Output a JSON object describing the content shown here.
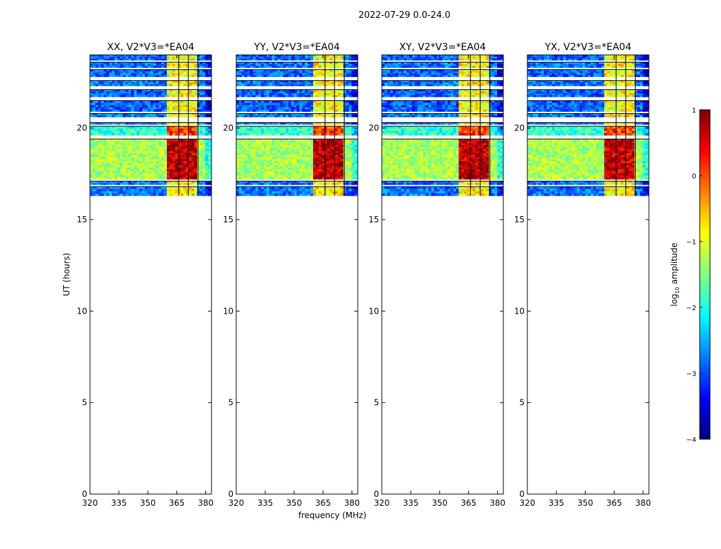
{
  "figure_title": "2022-07-29 0.0-24.0",
  "chart_data": {
    "type": "heatmap",
    "title": "2022-07-29 0.0-24.0",
    "xlabel": "frequency (MHz)",
    "ylabel": "UT (hours)",
    "xlim": [
      320,
      383
    ],
    "ylim": [
      0,
      24
    ],
    "xticks": [
      320,
      335,
      350,
      365,
      380
    ],
    "yticks": [
      0,
      5,
      10,
      15,
      20
    ],
    "colorbar": {
      "label_main": "log",
      "label_sub": "10",
      "label_rest": " amplitude",
      "colormap": "jet",
      "range": [
        -4,
        1
      ],
      "ticks": [
        1,
        0,
        -1,
        -2,
        -3,
        -4
      ],
      "tick_labels": [
        "1",
        "0",
        "−1",
        "−2",
        "−3",
        "−4"
      ]
    },
    "panels": [
      {
        "title": "XX, V2*V3=*EA04",
        "bright_band_mhz": [
          360,
          375
        ]
      },
      {
        "title": "YY, V2*V3=*EA04",
        "bright_band_mhz": [
          360,
          375
        ]
      },
      {
        "title": "XY, V2*V3=*EA04",
        "bright_band_mhz": [
          360,
          375
        ]
      },
      {
        "title": "YX, V2*V3=*EA04",
        "bright_band_mhz": [
          360,
          375
        ]
      }
    ],
    "data_time_range_hours": [
      16.3,
      24
    ],
    "segments": [
      {
        "ut": [
          16.3,
          16.8
        ],
        "mean_log_amp": -2.8
      },
      {
        "ut": [
          16.9,
          17.1
        ],
        "mean_log_amp": -2.8
      },
      {
        "ut": [
          17.2,
          19.4
        ],
        "mean_log_amp": -1.3
      },
      {
        "ut": [
          19.6,
          20.1
        ],
        "mean_log_amp": -1.9
      },
      {
        "ut": [
          20.2,
          20.3
        ],
        "mean_log_amp": -2.8
      },
      {
        "ut": [
          20.6,
          20.8
        ],
        "mean_log_amp": -2.8
      },
      {
        "ut": [
          20.9,
          21.5
        ],
        "mean_log_amp": -2.9
      },
      {
        "ut": [
          21.7,
          22.1
        ],
        "mean_log_amp": -2.9
      },
      {
        "ut": [
          22.3,
          22.6
        ],
        "mean_log_amp": -2.8
      },
      {
        "ut": [
          22.8,
          23.2
        ],
        "mean_log_amp": -2.9
      },
      {
        "ut": [
          23.3,
          23.6
        ],
        "mean_log_amp": -2.8
      },
      {
        "ut": [
          23.7,
          24.0
        ],
        "mean_log_amp": -2.9
      }
    ]
  }
}
